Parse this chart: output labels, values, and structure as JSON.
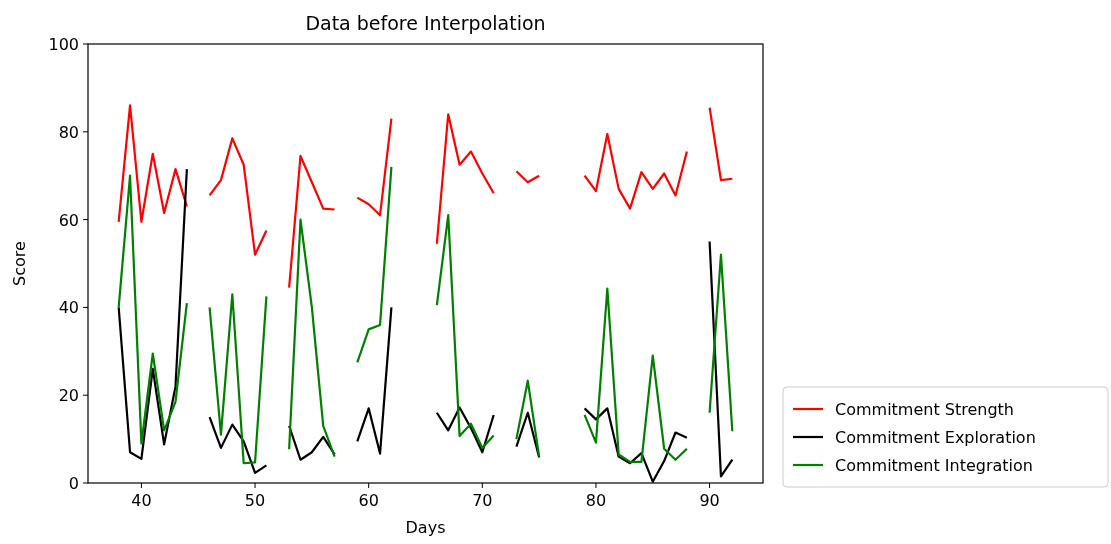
{
  "chart_data": {
    "type": "line",
    "title": "Data before Interpolation",
    "xlabel": "Days",
    "ylabel": "Score",
    "x": [
      38,
      39,
      40,
      41,
      42,
      43,
      44,
      45,
      46,
      47,
      48,
      49,
      50,
      51,
      52,
      53,
      54,
      55,
      56,
      57,
      58,
      59,
      60,
      61,
      62,
      63,
      64,
      65,
      66,
      67,
      68,
      69,
      70,
      71,
      72,
      73,
      74,
      75,
      76,
      77,
      78,
      79,
      80,
      81,
      82,
      83,
      84,
      85,
      86,
      87,
      88,
      89,
      90,
      91,
      92
    ],
    "series": [
      {
        "name": "Commitment Strength",
        "color": "#ff0000",
        "values": [
          59.5,
          86,
          59.5,
          75,
          61.5,
          71.5,
          63,
          null,
          65.5,
          69,
          78.5,
          72.5,
          52,
          57.5,
          null,
          44.5,
          74.5,
          68.5,
          62.5,
          62.3,
          null,
          65,
          63.5,
          61,
          83,
          null,
          null,
          null,
          54.5,
          84,
          72.5,
          75.5,
          70.5,
          66,
          null,
          71,
          68.5,
          70,
          null,
          null,
          null,
          70,
          66.5,
          79.5,
          67,
          62.5,
          70.8,
          67,
          70.5,
          65.5,
          75.5,
          null,
          85.5,
          69,
          69.3
        ]
      },
      {
        "name": "Commitment Exploration",
        "color": "#000000",
        "values": [
          40,
          7,
          5.5,
          26,
          8.8,
          22,
          71.5,
          null,
          15,
          8,
          13.3,
          9.5,
          2.3,
          4,
          null,
          13,
          5.3,
          7,
          10.5,
          6.5,
          null,
          9.5,
          17,
          6.7,
          40,
          null,
          null,
          null,
          16,
          12,
          17.2,
          12.5,
          7,
          15.5,
          null,
          8.3,
          16,
          5.8,
          null,
          null,
          null,
          17,
          14.5,
          17,
          6,
          4.5,
          6.8,
          0.3,
          5,
          11.5,
          10.3,
          null,
          55,
          1.5,
          5.3
        ]
      },
      {
        "name": "Commitment Integration",
        "color": "#008000",
        "values": [
          40,
          70,
          9,
          29.5,
          12,
          18.5,
          41,
          null,
          40,
          11,
          43,
          4.5,
          4.7,
          42.5,
          null,
          7.7,
          60,
          40,
          13,
          6,
          null,
          27.5,
          35,
          36,
          72,
          null,
          null,
          null,
          40.5,
          61,
          10.7,
          13.5,
          8,
          10.8,
          null,
          10,
          23.3,
          6,
          null,
          null,
          null,
          15.5,
          9.2,
          44.3,
          6.5,
          4.8,
          4.8,
          29,
          7.8,
          5.3,
          7.8,
          null,
          16,
          52,
          11.8
        ]
      }
    ],
    "xlim": [
      35.3,
      94.7
    ],
    "xticks": [
      40,
      50,
      60,
      70,
      80,
      90
    ],
    "ylim": [
      0,
      100
    ],
    "yticks": [
      0,
      20,
      40,
      60,
      80,
      100
    ],
    "legend": "right",
    "line_style": "solid",
    "marker": "none"
  }
}
